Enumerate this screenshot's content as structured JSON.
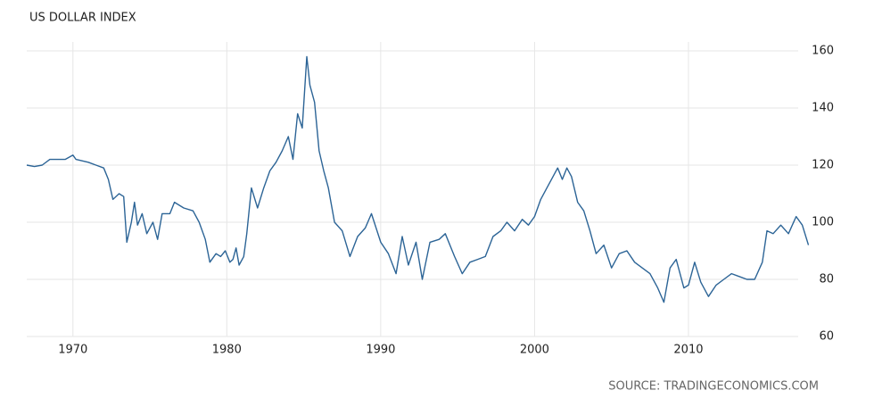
{
  "chart_data": {
    "type": "line",
    "title": "US DOLLAR INDEX",
    "source": "SOURCE: TRADINGECONOMICS.COM",
    "xlim": [
      1967,
      2018
    ],
    "xticks": [
      1970,
      1980,
      1990,
      2000,
      2010
    ],
    "ylim": [
      60,
      160
    ],
    "yticks": [
      60,
      80,
      100,
      120,
      140,
      160
    ],
    "grid": true,
    "x": [
      1967.0,
      1967.5,
      1968.0,
      1968.5,
      1969.0,
      1969.5,
      1970.0,
      1970.2,
      1970.6,
      1971.0,
      1971.5,
      1972.0,
      1972.3,
      1972.6,
      1973.0,
      1973.3,
      1973.5,
      1973.8,
      1974.0,
      1974.2,
      1974.5,
      1974.8,
      1975.2,
      1975.5,
      1975.8,
      1976.3,
      1976.6,
      1977.2,
      1977.8,
      1978.2,
      1978.6,
      1978.9,
      1979.3,
      1979.6,
      1979.9,
      1980.2,
      1980.4,
      1980.6,
      1980.8,
      1981.1,
      1981.3,
      1981.6,
      1982.0,
      1982.4,
      1982.8,
      1983.2,
      1983.6,
      1984.0,
      1984.3,
      1984.6,
      1984.9,
      1985.2,
      1985.4,
      1985.7,
      1986.0,
      1986.3,
      1986.6,
      1987.0,
      1987.5,
      1988.0,
      1988.5,
      1989.0,
      1989.4,
      1990.0,
      1990.5,
      1991.0,
      1991.4,
      1991.8,
      1992.3,
      1992.7,
      1993.2,
      1993.8,
      1994.2,
      1994.8,
      1995.3,
      1995.8,
      1996.3,
      1996.8,
      1997.3,
      1997.8,
      1998.2,
      1998.7,
      1999.2,
      1999.6,
      2000.0,
      2000.4,
      2000.8,
      2001.2,
      2001.5,
      2001.8,
      2002.1,
      2002.4,
      2002.8,
      2003.2,
      2003.6,
      2004.0,
      2004.5,
      2005.0,
      2005.5,
      2006.0,
      2006.5,
      2007.0,
      2007.5,
      2008.0,
      2008.4,
      2008.8,
      2009.2,
      2009.7,
      2010.0,
      2010.4,
      2010.8,
      2011.3,
      2011.8,
      2012.3,
      2012.8,
      2013.3,
      2013.8,
      2014.3,
      2014.8,
      2015.1,
      2015.5,
      2016.0,
      2016.5,
      2017.0,
      2017.4,
      2017.8
    ],
    "series": [
      {
        "name": "US Dollar Index",
        "color": "#2c6496",
        "values": [
          120,
          119.5,
          120,
          122,
          122,
          122,
          123.5,
          122,
          121.5,
          121,
          120,
          119,
          115,
          108,
          110,
          109,
          93,
          100,
          107,
          99,
          103,
          96,
          100,
          94,
          103,
          103,
          107,
          105,
          104,
          100,
          94,
          86,
          89,
          88,
          90,
          86,
          87,
          91,
          85,
          88,
          96,
          112,
          105,
          112,
          118,
          121,
          125,
          130,
          122,
          138,
          133,
          158,
          148,
          142,
          125,
          118,
          112,
          100,
          97,
          88,
          95,
          98,
          103,
          93,
          89,
          82,
          95,
          85,
          93,
          80,
          93,
          94,
          96,
          88,
          82,
          86,
          87,
          88,
          95,
          97,
          100,
          97,
          101,
          99,
          102,
          108,
          112,
          116,
          119,
          115,
          119,
          116,
          107,
          104,
          97,
          89,
          92,
          84,
          89,
          90,
          86,
          84,
          82,
          77,
          72,
          84,
          87,
          77,
          78,
          86,
          79,
          74,
          78,
          80,
          82,
          81,
          80,
          80,
          86,
          97,
          96,
          99,
          96,
          102,
          99,
          92
        ]
      }
    ]
  }
}
